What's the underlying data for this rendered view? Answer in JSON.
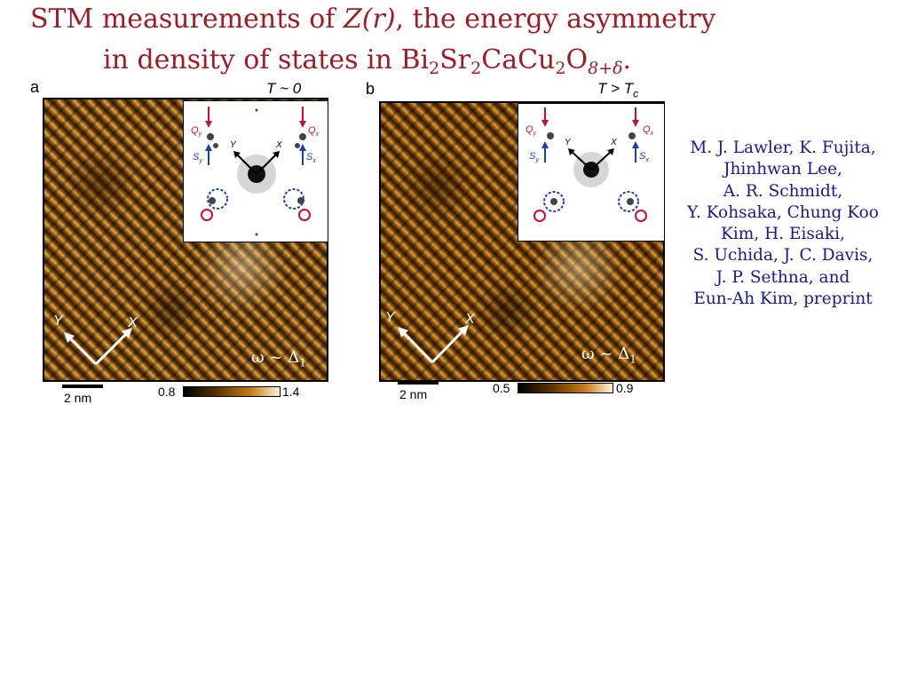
{
  "title": {
    "line1_pre": "STM measurements of ",
    "line1_var": "Z(r)",
    "line1_post": ", the energy asymmetry",
    "line2_pre": "in density of states in Bi",
    "sub1": "2",
    "sr": "Sr",
    "sub2": "2",
    "cacu": "CaCu",
    "sub3": "2",
    "o": "O",
    "sub4": "8+δ",
    "end": "."
  },
  "panel_a": {
    "letter": "a",
    "temperature": "T ~ 0",
    "omega_label": "ω ~ Δ",
    "omega_sub": "1",
    "scale_label": "2 nm",
    "cbar_min": "0.8",
    "cbar_max": "1.4",
    "axis_x": "X",
    "axis_y": "Y"
  },
  "panel_b": {
    "letter": "b",
    "temperature_pre": "T > T",
    "temperature_sub": "c",
    "omega_label": "ω ~ Δ",
    "omega_sub": "1",
    "scale_label": "2 nm",
    "cbar_min": "0.5",
    "cbar_max": "0.9",
    "axis_x": "X",
    "axis_y": "Y"
  },
  "inset_labels": {
    "qy": "Q",
    "qy_sub": "y",
    "qx": "Q",
    "qx_sub": "x",
    "sy": "S",
    "sy_sub": "y",
    "sx": "S",
    "sx_sub": "x",
    "y": "Y",
    "x": "X"
  },
  "authors": [
    "M. J. Lawler, K. Fujita,",
    "Jhinhwan Lee,",
    "A. R. Schmidt,",
    "Y. Kohsaka, Chung Koo",
    "Kim, H. Eisaki,",
    "S. Uchida, J. C. Davis,",
    "J. P. Sethna, and",
    "Eun-Ah Kim, preprint"
  ],
  "colors": {
    "title": "#a01c24",
    "authors": "#1a1a8a",
    "q_red": "#c8102e",
    "s_blue": "#1a3fb0"
  }
}
